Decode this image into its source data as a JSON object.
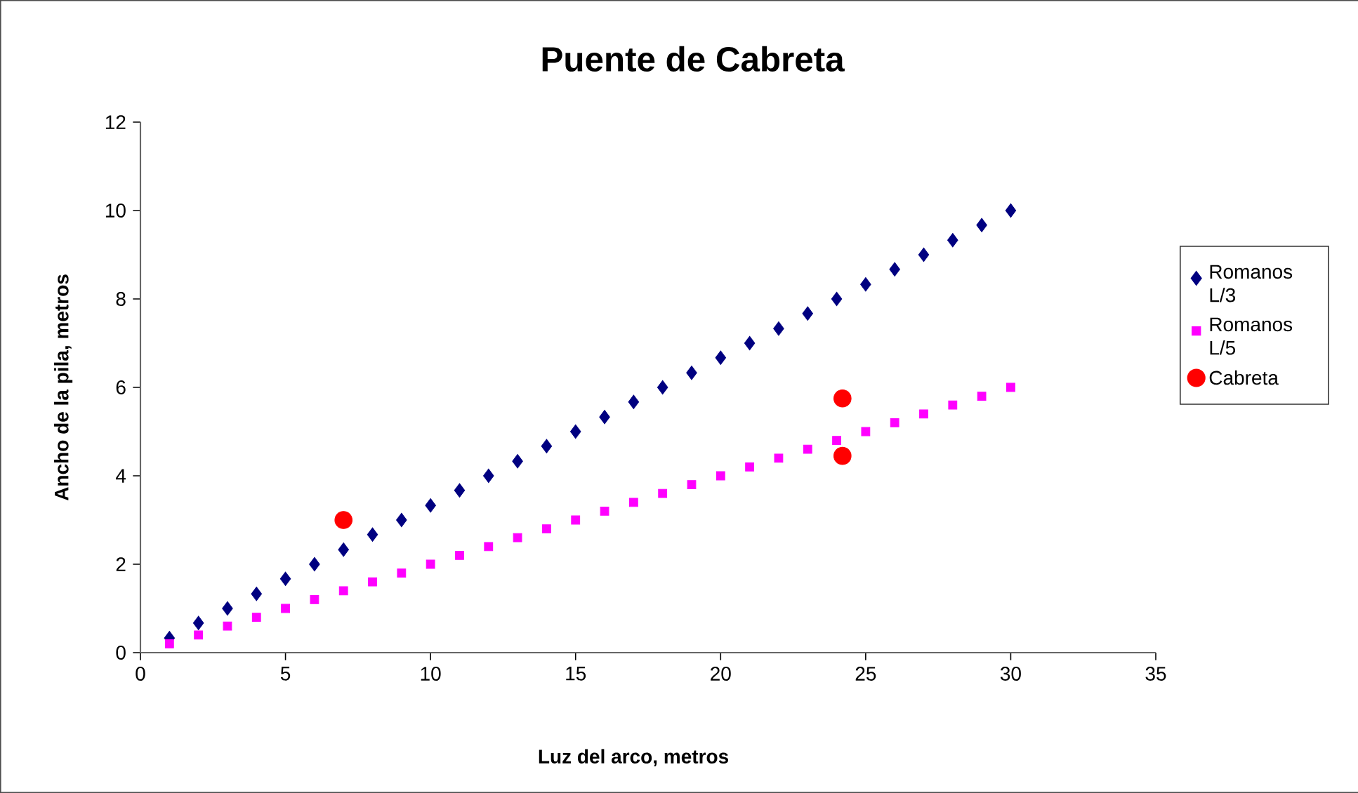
{
  "chart_data": {
    "type": "scatter",
    "title": "Puente de Cabreta",
    "xlabel": "Luz del arco, metros",
    "ylabel": "Ancho de la pila, metros",
    "xlim": [
      0,
      35
    ],
    "ylim": [
      0,
      12
    ],
    "xticks": [
      0,
      5,
      10,
      15,
      20,
      25,
      30,
      35
    ],
    "yticks": [
      0,
      2,
      4,
      6,
      8,
      10,
      12
    ],
    "legend": "right",
    "grid": false,
    "series": [
      {
        "name": "Romanos L/3",
        "color": "#000080",
        "marker": "diamond",
        "x": [
          1,
          2,
          3,
          4,
          5,
          6,
          7,
          8,
          9,
          10,
          11,
          12,
          13,
          14,
          15,
          16,
          17,
          18,
          19,
          20,
          21,
          22,
          23,
          24,
          25,
          26,
          27,
          28,
          29,
          30
        ],
        "values": [
          0.33,
          0.67,
          1,
          1.33,
          1.67,
          2,
          2.33,
          2.67,
          3,
          3.33,
          3.67,
          4,
          4.33,
          4.67,
          5,
          5.33,
          5.67,
          6,
          6.33,
          6.67,
          7,
          7.33,
          7.67,
          8,
          8.33,
          8.67,
          9,
          9.33,
          9.67,
          10
        ]
      },
      {
        "name": "Romanos L/5",
        "color": "#ff00ff",
        "marker": "square",
        "x": [
          1,
          2,
          3,
          4,
          5,
          6,
          7,
          8,
          9,
          10,
          11,
          12,
          13,
          14,
          15,
          16,
          17,
          18,
          19,
          20,
          21,
          22,
          23,
          24,
          25,
          26,
          27,
          28,
          29,
          30
        ],
        "values": [
          0.2,
          0.4,
          0.6,
          0.8,
          1,
          1.2,
          1.4,
          1.6,
          1.8,
          2,
          2.2,
          2.4,
          2.6,
          2.8,
          3,
          3.2,
          3.4,
          3.6,
          3.8,
          4,
          4.2,
          4.4,
          4.6,
          4.8,
          5,
          5.2,
          5.4,
          5.6,
          5.8,
          6
        ]
      },
      {
        "name": "Cabreta",
        "color": "#ff0000",
        "marker": "circle",
        "x": [
          7,
          24.2,
          24.2
        ],
        "values": [
          3,
          5.75,
          4.45
        ]
      }
    ]
  }
}
